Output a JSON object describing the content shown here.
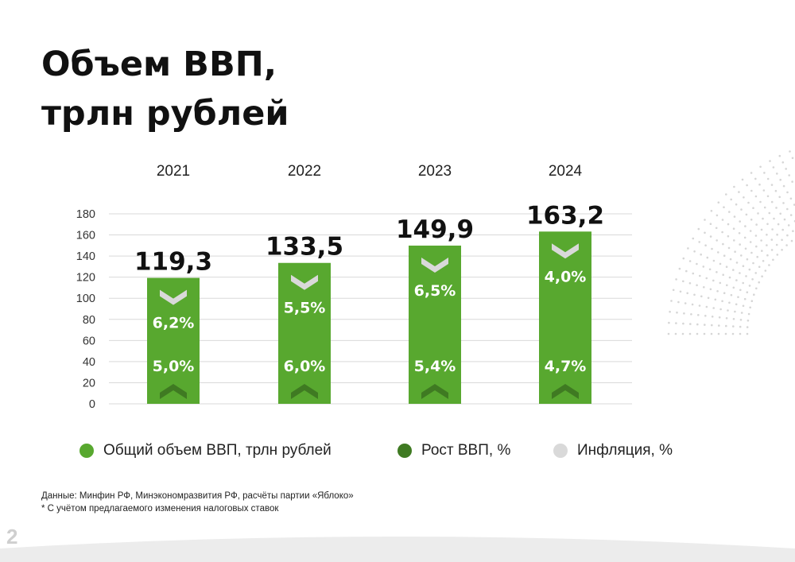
{
  "slide": {
    "title_line1": "Объем ВВП,",
    "title_line2": "трлн рублей",
    "page_number": "2"
  },
  "chart_data": {
    "type": "bar",
    "categories": [
      "2021",
      "2022",
      "2023",
      "2024"
    ],
    "ylim": [
      0,
      180
    ],
    "yticks": [
      0,
      20,
      40,
      60,
      80,
      100,
      120,
      140,
      160,
      180
    ],
    "grid": true,
    "series": [
      {
        "name": "Общий объем ВВП, трлн рублей",
        "values": [
          119.3,
          133.5,
          149.9,
          163.2
        ],
        "labels": [
          "119,3",
          "133,5",
          "149,9",
          "163,2"
        ],
        "color": "#58a82f"
      },
      {
        "name": "Рост ВВП, %",
        "values": [
          5.0,
          6.0,
          5.4,
          4.7
        ],
        "labels": [
          "5,0%",
          "6,0%",
          "5,4%",
          "4,7%"
        ],
        "color": "#3f7a22"
      },
      {
        "name": "Инфляция, %",
        "values": [
          6.2,
          5.5,
          6.5,
          4.0
        ],
        "labels": [
          "6,2%",
          "5,5%",
          "6,5%",
          "4,0%"
        ],
        "color": "#d9d9d9"
      }
    ],
    "legend_position": "bottom"
  },
  "footnotes": {
    "source": "Данные: Минфин РФ, Минэкономразвития РФ, расчёты партии «Яблоко»",
    "note": "* С учётом предлагаемого изменения налоговых ставок"
  }
}
